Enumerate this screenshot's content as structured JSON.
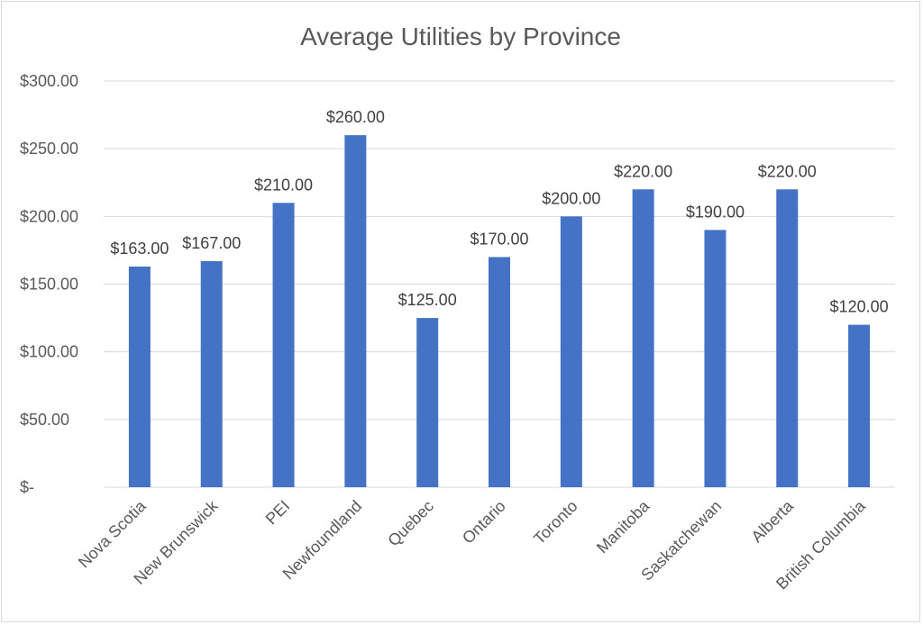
{
  "chart_data": {
    "type": "bar",
    "title": "Average Utilities by Province",
    "xlabel": "",
    "ylabel": "",
    "categories": [
      "Nova Scotia",
      "New Brunswick",
      "PEI",
      "Newfoundland",
      "Quebec",
      "Ontario",
      "Toronto",
      "Manitoba",
      "Saskatchewan",
      "Alberta",
      "British Columbia"
    ],
    "values": [
      163,
      167,
      210,
      260,
      125,
      170,
      200,
      220,
      190,
      220,
      120
    ],
    "data_labels": [
      "$163.00",
      "$167.00",
      "$210.00",
      "$260.00",
      "$125.00",
      "$170.00",
      "$200.00",
      "$220.00",
      "$190.00",
      "$220.00",
      "$120.00"
    ],
    "ylim": [
      0,
      300
    ],
    "y_ticks": [
      0,
      50,
      100,
      150,
      200,
      250,
      300
    ],
    "y_tick_labels": [
      "$-",
      "$50.00",
      "$100.00",
      "$150.00",
      "$200.00",
      "$250.00",
      "$300.00"
    ],
    "grid": true,
    "legend": "none",
    "bar_color": "#4472c4"
  }
}
